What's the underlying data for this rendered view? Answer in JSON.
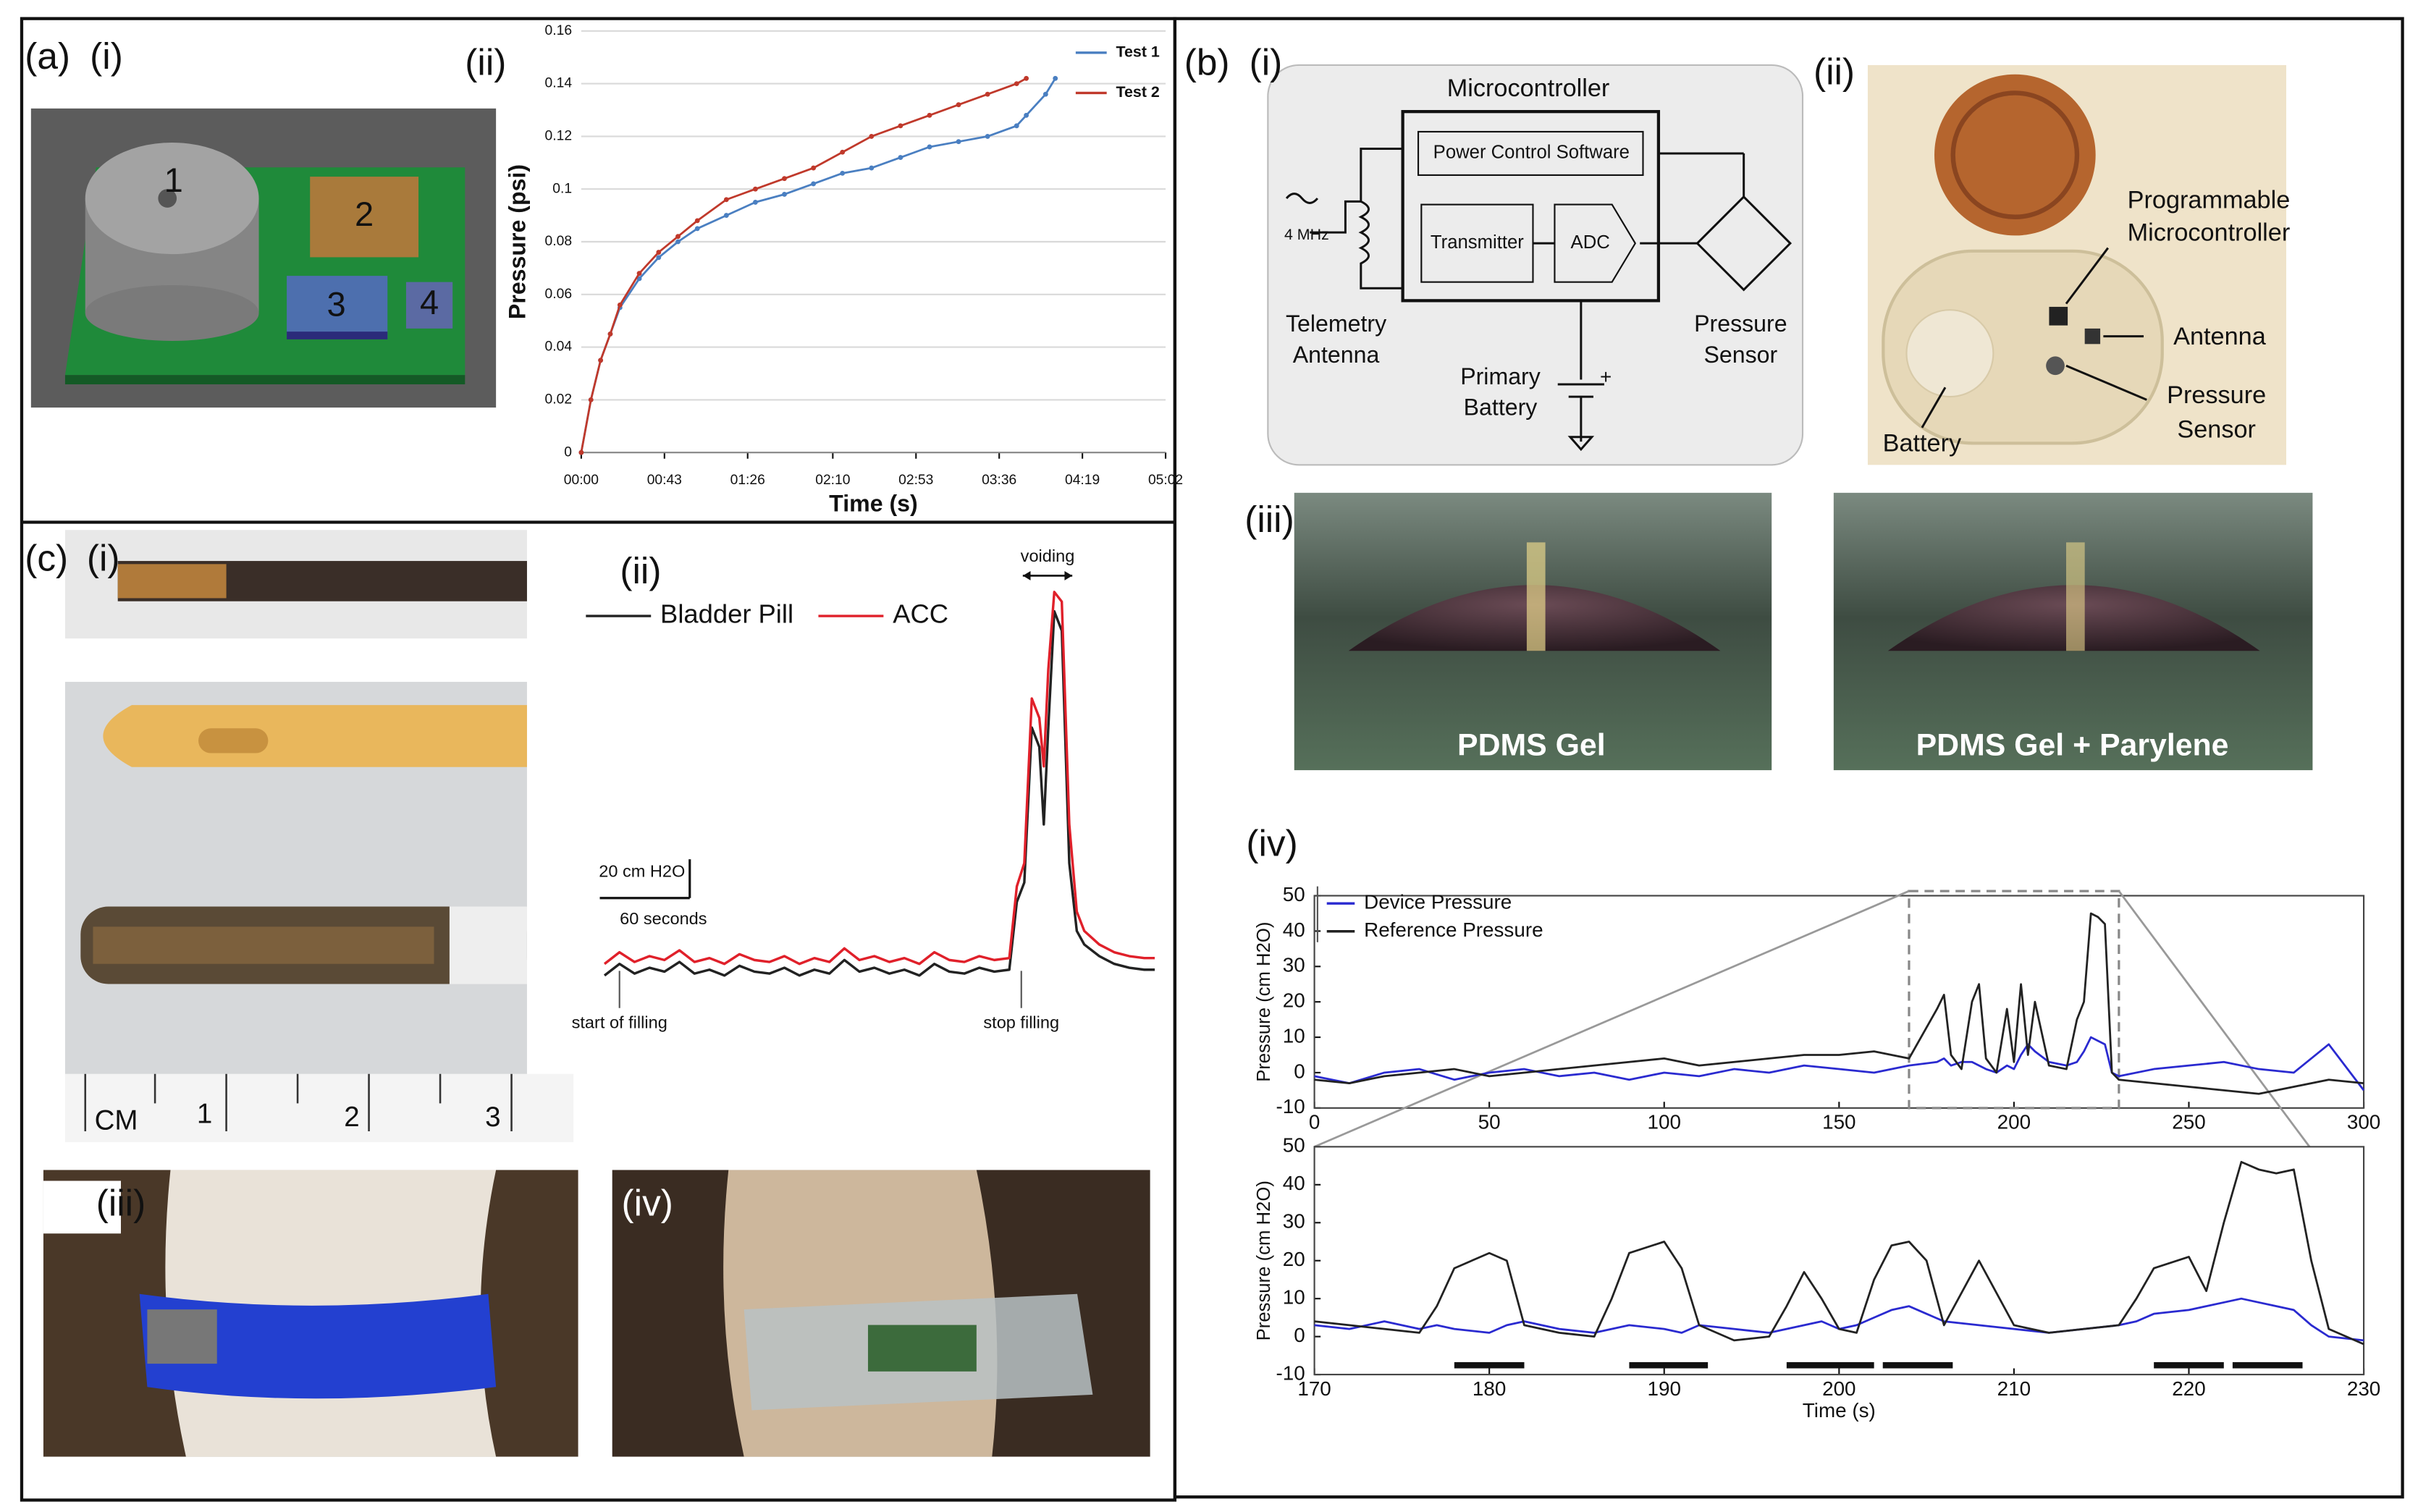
{
  "panel_labels": [
    "(a)",
    "(i)",
    "(ii)",
    "(b)",
    "(i)",
    "(ii)",
    "(iii)",
    "(iv)",
    "(c)",
    "(i)",
    "(ii)",
    "(iii)",
    "(iv)"
  ],
  "diagram": {
    "title": "Microcontroller",
    "blocks": [
      "Power Control Software",
      "Transmitter",
      "ADC"
    ],
    "frequency": "4 MHz",
    "antenna": [
      "Telemetry",
      "Antenna"
    ],
    "battery": [
      "Primary",
      "Battery"
    ],
    "sensor": [
      "Pressure",
      "Sensor"
    ],
    "polarity": "+"
  },
  "photo_labels": {
    "microcontroller": [
      "Programmable",
      "Microcontroller"
    ],
    "antenna": "Antenna",
    "sensor": [
      "Pressure",
      "Sensor"
    ],
    "battery": "Battery",
    "coatings": [
      "PDMS Gel",
      "PDMS Gel + Parylene"
    ],
    "ruler": [
      "CM",
      "1",
      "2",
      "3"
    ],
    "components": [
      "1",
      "2",
      "3",
      "4"
    ]
  },
  "chart_data": [
    {
      "type": "line",
      "ylabel": "Pressure (psi)",
      "xlabel": "Time (s)",
      "x": [
        0,
        5,
        10,
        15,
        20,
        30,
        40,
        50,
        60,
        75,
        90,
        105,
        120,
        135,
        150,
        165,
        180,
        195,
        210,
        225,
        230,
        240,
        245
      ],
      "xlim": [
        0,
        302
      ],
      "xticks": [
        {
          "value": 0,
          "label": "00:00"
        },
        {
          "value": 43,
          "label": "00:43"
        },
        {
          "value": 86,
          "label": "01:26"
        },
        {
          "value": 130,
          "label": "02:10"
        },
        {
          "value": 173,
          "label": "02:53"
        },
        {
          "value": 216,
          "label": "03:36"
        },
        {
          "value": 259,
          "label": "04:19"
        },
        {
          "value": 302,
          "label": "05:02"
        }
      ],
      "ylim": [
        0,
        0.16
      ],
      "yticks": [
        0,
        0.02,
        0.04,
        0.06,
        0.08,
        0.1,
        0.12,
        0.14,
        0.16
      ],
      "grid": true,
      "legend": "top-right",
      "series": [
        {
          "name": "Test 1",
          "color": "#4a7fc1",
          "values": [
            0,
            0.02,
            0.035,
            0.045,
            0.055,
            0.066,
            0.074,
            0.08,
            0.085,
            0.09,
            0.095,
            0.098,
            0.102,
            0.106,
            0.108,
            0.112,
            0.116,
            0.118,
            0.12,
            0.124,
            0.128,
            0.136,
            0.142
          ]
        },
        {
          "name": "Test 2",
          "color": "#c0392b",
          "values": [
            0,
            0.02,
            0.035,
            0.045,
            0.056,
            0.068,
            0.076,
            0.082,
            0.088,
            0.096,
            0.1,
            0.104,
            0.108,
            0.114,
            0.12,
            0.124,
            0.128,
            0.132,
            0.136,
            0.14,
            0.142,
            null,
            null
          ]
        }
      ]
    },
    {
      "type": "line",
      "x": [
        0,
        10,
        20,
        30,
        40,
        50,
        60,
        70,
        80,
        90,
        100,
        110,
        120,
        130,
        140,
        150,
        160,
        170,
        180,
        190,
        200,
        210,
        220,
        230,
        240,
        250,
        260,
        270,
        275,
        280,
        285,
        290,
        293,
        296,
        300,
        305,
        310,
        315,
        320,
        330,
        340,
        350,
        360,
        367
      ],
      "xlim": [
        0,
        367
      ],
      "ylim": [
        -10,
        210
      ],
      "legend": "top-left",
      "series": [
        {
          "name": "Bladder Pill",
          "color": "#222222",
          "values": [
            2,
            8,
            3,
            6,
            4,
            9,
            3,
            5,
            2,
            7,
            4,
            3,
            6,
            2,
            5,
            3,
            10,
            4,
            6,
            3,
            5,
            2,
            8,
            4,
            3,
            6,
            4,
            5,
            40,
            50,
            130,
            120,
            80,
            130,
            190,
            180,
            60,
            25,
            18,
            12,
            8,
            6,
            5,
            5
          ]
        },
        {
          "name": "ACC",
          "color": "#e0202a",
          "values": [
            8,
            14,
            9,
            12,
            10,
            15,
            9,
            11,
            8,
            13,
            10,
            9,
            12,
            8,
            11,
            9,
            16,
            10,
            12,
            9,
            11,
            8,
            14,
            10,
            9,
            12,
            10,
            11,
            48,
            60,
            145,
            135,
            110,
            160,
            200,
            195,
            80,
            35,
            25,
            18,
            14,
            12,
            11,
            11
          ]
        }
      ],
      "scale_bars": [
        {
          "value": 20,
          "label": "20 cm H2O"
        },
        {
          "value": 60,
          "label": "60 seconds"
        }
      ],
      "annotations": [
        {
          "text": "voiding",
          "x": [
            279,
            312
          ]
        },
        {
          "text": "start of filling",
          "x": 10
        },
        {
          "text": "stop filling",
          "x": 278
        }
      ]
    },
    {
      "type": "line",
      "ylabel": "Pressure (cm H2O)",
      "x": [
        0,
        10,
        20,
        30,
        40,
        50,
        60,
        70,
        80,
        90,
        100,
        110,
        120,
        130,
        140,
        150,
        160,
        170,
        178,
        180,
        182,
        185,
        188,
        190,
        192,
        195,
        198,
        200,
        202,
        204,
        206,
        210,
        215,
        218,
        220,
        222,
        224,
        226,
        228,
        230,
        240,
        250,
        260,
        270,
        280,
        290,
        300
      ],
      "xlim": [
        0,
        300
      ],
      "xticks": [
        0,
        50,
        100,
        150,
        200,
        250,
        300
      ],
      "ylim": [
        -10,
        50
      ],
      "yticks": [
        -10,
        0,
        10,
        20,
        30,
        40,
        50
      ],
      "legend": "top-left",
      "zoom": [
        170,
        230
      ],
      "series": [
        {
          "name": "Device Pressure",
          "color": "#2a2ad0",
          "values": [
            -1,
            -3,
            0,
            1,
            -2,
            0,
            1,
            -1,
            0,
            -2,
            0,
            -1,
            1,
            0,
            2,
            1,
            0,
            2,
            3,
            4,
            2,
            3,
            3,
            2,
            1,
            0,
            2,
            1,
            5,
            8,
            6,
            3,
            2,
            3,
            6,
            10,
            9,
            8,
            0,
            -1,
            1,
            2,
            3,
            1,
            0,
            8,
            -5
          ]
        },
        {
          "name": "Reference Pressure",
          "color": "#222222",
          "values": [
            -2,
            -3,
            -1,
            0,
            1,
            -1,
            0,
            1,
            2,
            3,
            4,
            2,
            3,
            4,
            5,
            5,
            6,
            4,
            18,
            22,
            5,
            1,
            20,
            25,
            4,
            0,
            18,
            3,
            25,
            5,
            20,
            2,
            1,
            15,
            20,
            45,
            44,
            42,
            0,
            -2,
            -3,
            -4,
            -5,
            -6,
            -4,
            -2,
            -3
          ]
        }
      ]
    },
    {
      "type": "line",
      "ylabel": "Pressure (cm H2O)",
      "xlabel": "Time (s)",
      "x": [
        170,
        172,
        174,
        176,
        177,
        178,
        180,
        181,
        182,
        184,
        186,
        187,
        188,
        190,
        191,
        192,
        194,
        196,
        197,
        198,
        199,
        200,
        201,
        202,
        203,
        204,
        205,
        206,
        208,
        210,
        212,
        214,
        216,
        217,
        218,
        220,
        221,
        222,
        223,
        224,
        225,
        226,
        227,
        228,
        230
      ],
      "xlim": [
        170,
        230
      ],
      "xticks": [
        170,
        180,
        190,
        200,
        210,
        220,
        230
      ],
      "ylim": [
        -10,
        50
      ],
      "yticks": [
        -10,
        0,
        10,
        20,
        30,
        40,
        50
      ],
      "events": [
        [
          178,
          182
        ],
        [
          188,
          192.5
        ],
        [
          197,
          202
        ],
        [
          202.5,
          206.5
        ],
        [
          218,
          222
        ],
        [
          222.5,
          226.5
        ]
      ],
      "series": [
        {
          "color": "#2a2ad0",
          "values": [
            3,
            2,
            4,
            2,
            3,
            2,
            1,
            3,
            4,
            2,
            1,
            2,
            3,
            2,
            1,
            3,
            2,
            1,
            2,
            3,
            4,
            2,
            3,
            5,
            7,
            8,
            6,
            4,
            3,
            2,
            1,
            2,
            3,
            4,
            6,
            7,
            8,
            9,
            10,
            9,
            8,
            7,
            3,
            0,
            -1
          ]
        },
        {
          "color": "#222222",
          "values": [
            4,
            3,
            2,
            1,
            8,
            18,
            22,
            20,
            3,
            1,
            0,
            10,
            22,
            25,
            18,
            3,
            -1,
            0,
            8,
            17,
            10,
            2,
            1,
            15,
            24,
            25,
            20,
            3,
            20,
            3,
            1,
            2,
            3,
            10,
            18,
            21,
            12,
            30,
            46,
            44,
            43,
            44,
            20,
            2,
            -2
          ]
        }
      ]
    }
  ]
}
